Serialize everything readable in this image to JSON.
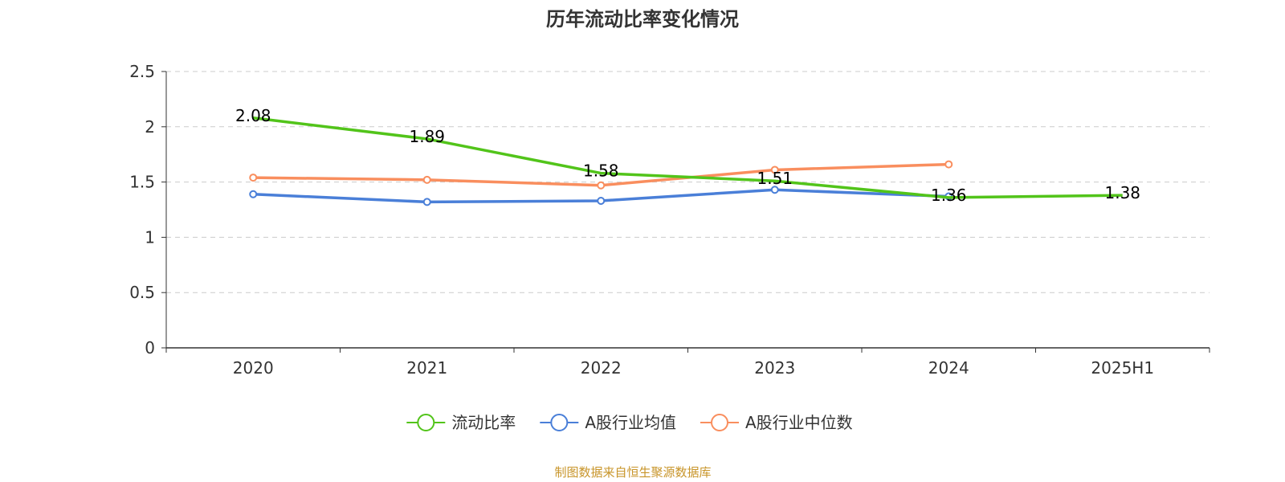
{
  "chart_data": {
    "type": "line",
    "title": "历年流动比率变化情况",
    "categories": [
      "2020",
      "2021",
      "2022",
      "2023",
      "2024",
      "2025H1"
    ],
    "ylim": [
      0,
      2.5
    ],
    "y_ticks": [
      0,
      0.5,
      1,
      1.5,
      2,
      2.5
    ],
    "y_tick_labels": [
      "0",
      "0.5",
      "1",
      "1.5",
      "2",
      "2.5"
    ],
    "grid": true,
    "legend_position": "bottom-center",
    "series": [
      {
        "name": "流动比率",
        "color": "#52c41a",
        "values": [
          2.08,
          1.89,
          1.58,
          1.51,
          1.36,
          1.38
        ],
        "labels": [
          "2.08",
          "1.89",
          "1.58",
          "1.51",
          "1.36",
          "1.38"
        ],
        "show_markers": false
      },
      {
        "name": "A股行业均值",
        "color": "#4a7fd8",
        "values": [
          1.39,
          1.32,
          1.33,
          1.43,
          1.37,
          null
        ],
        "show_markers": true
      },
      {
        "name": "A股行业中位数",
        "color": "#f98e5e",
        "values": [
          1.54,
          1.52,
          1.47,
          1.61,
          1.66,
          null
        ],
        "show_markers": true
      }
    ]
  },
  "source": {
    "text": "制图数据来自恒生聚源数据库",
    "color": "#c8952a"
  }
}
